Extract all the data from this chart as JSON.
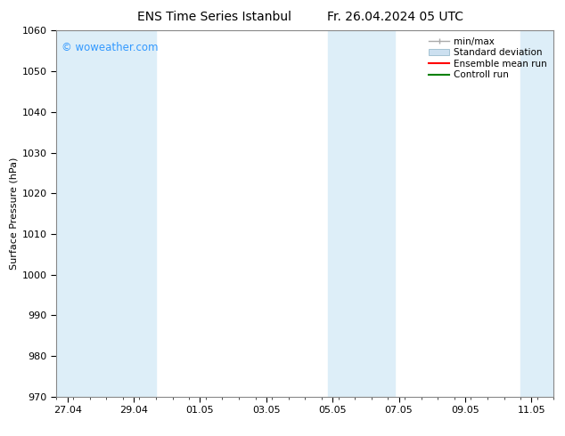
{
  "title": "ENS Time Series Istanbul",
  "title2": "Fr. 26.04.2024 05 UTC",
  "ylabel": "Surface Pressure (hPa)",
  "ylim": [
    970,
    1060
  ],
  "ytick_interval": 10,
  "bg_color": "#ffffff",
  "plot_bg_color": "#ffffff",
  "watermark": "© woweather.com",
  "watermark_color": "#3399ff",
  "shade_color": "#ddeef8",
  "shade_regions": [
    [
      26.5,
      29.1
    ],
    [
      29.1,
      29.5
    ],
    [
      34.7,
      36.3
    ],
    [
      36.3,
      36.7
    ],
    [
      40.5,
      41.5
    ]
  ],
  "xtick_labels": [
    "27.04",
    "29.04",
    "01.05",
    "03.05",
    "05.05",
    "07.05",
    "09.05",
    "11.05"
  ],
  "xtick_positions": [
    26.83,
    28.83,
    30.83,
    32.83,
    34.83,
    36.83,
    38.83,
    40.83
  ],
  "xmin": 26.5,
  "xmax": 41.5,
  "legend_items": [
    {
      "label": "min/max",
      "color": "#aaaaaa",
      "type": "errorbar"
    },
    {
      "label": "Standard deviation",
      "color": "#cce0f0",
      "type": "rect"
    },
    {
      "label": "Ensemble mean run",
      "color": "#ff0000",
      "type": "line"
    },
    {
      "label": "Controll run",
      "color": "#008000",
      "type": "line"
    }
  ],
  "spine_color": "#888888",
  "tick_color": "#000000",
  "font_color": "#000000",
  "title_fontsize": 10,
  "axis_fontsize": 8,
  "tick_fontsize": 8,
  "legend_fontsize": 7.5
}
